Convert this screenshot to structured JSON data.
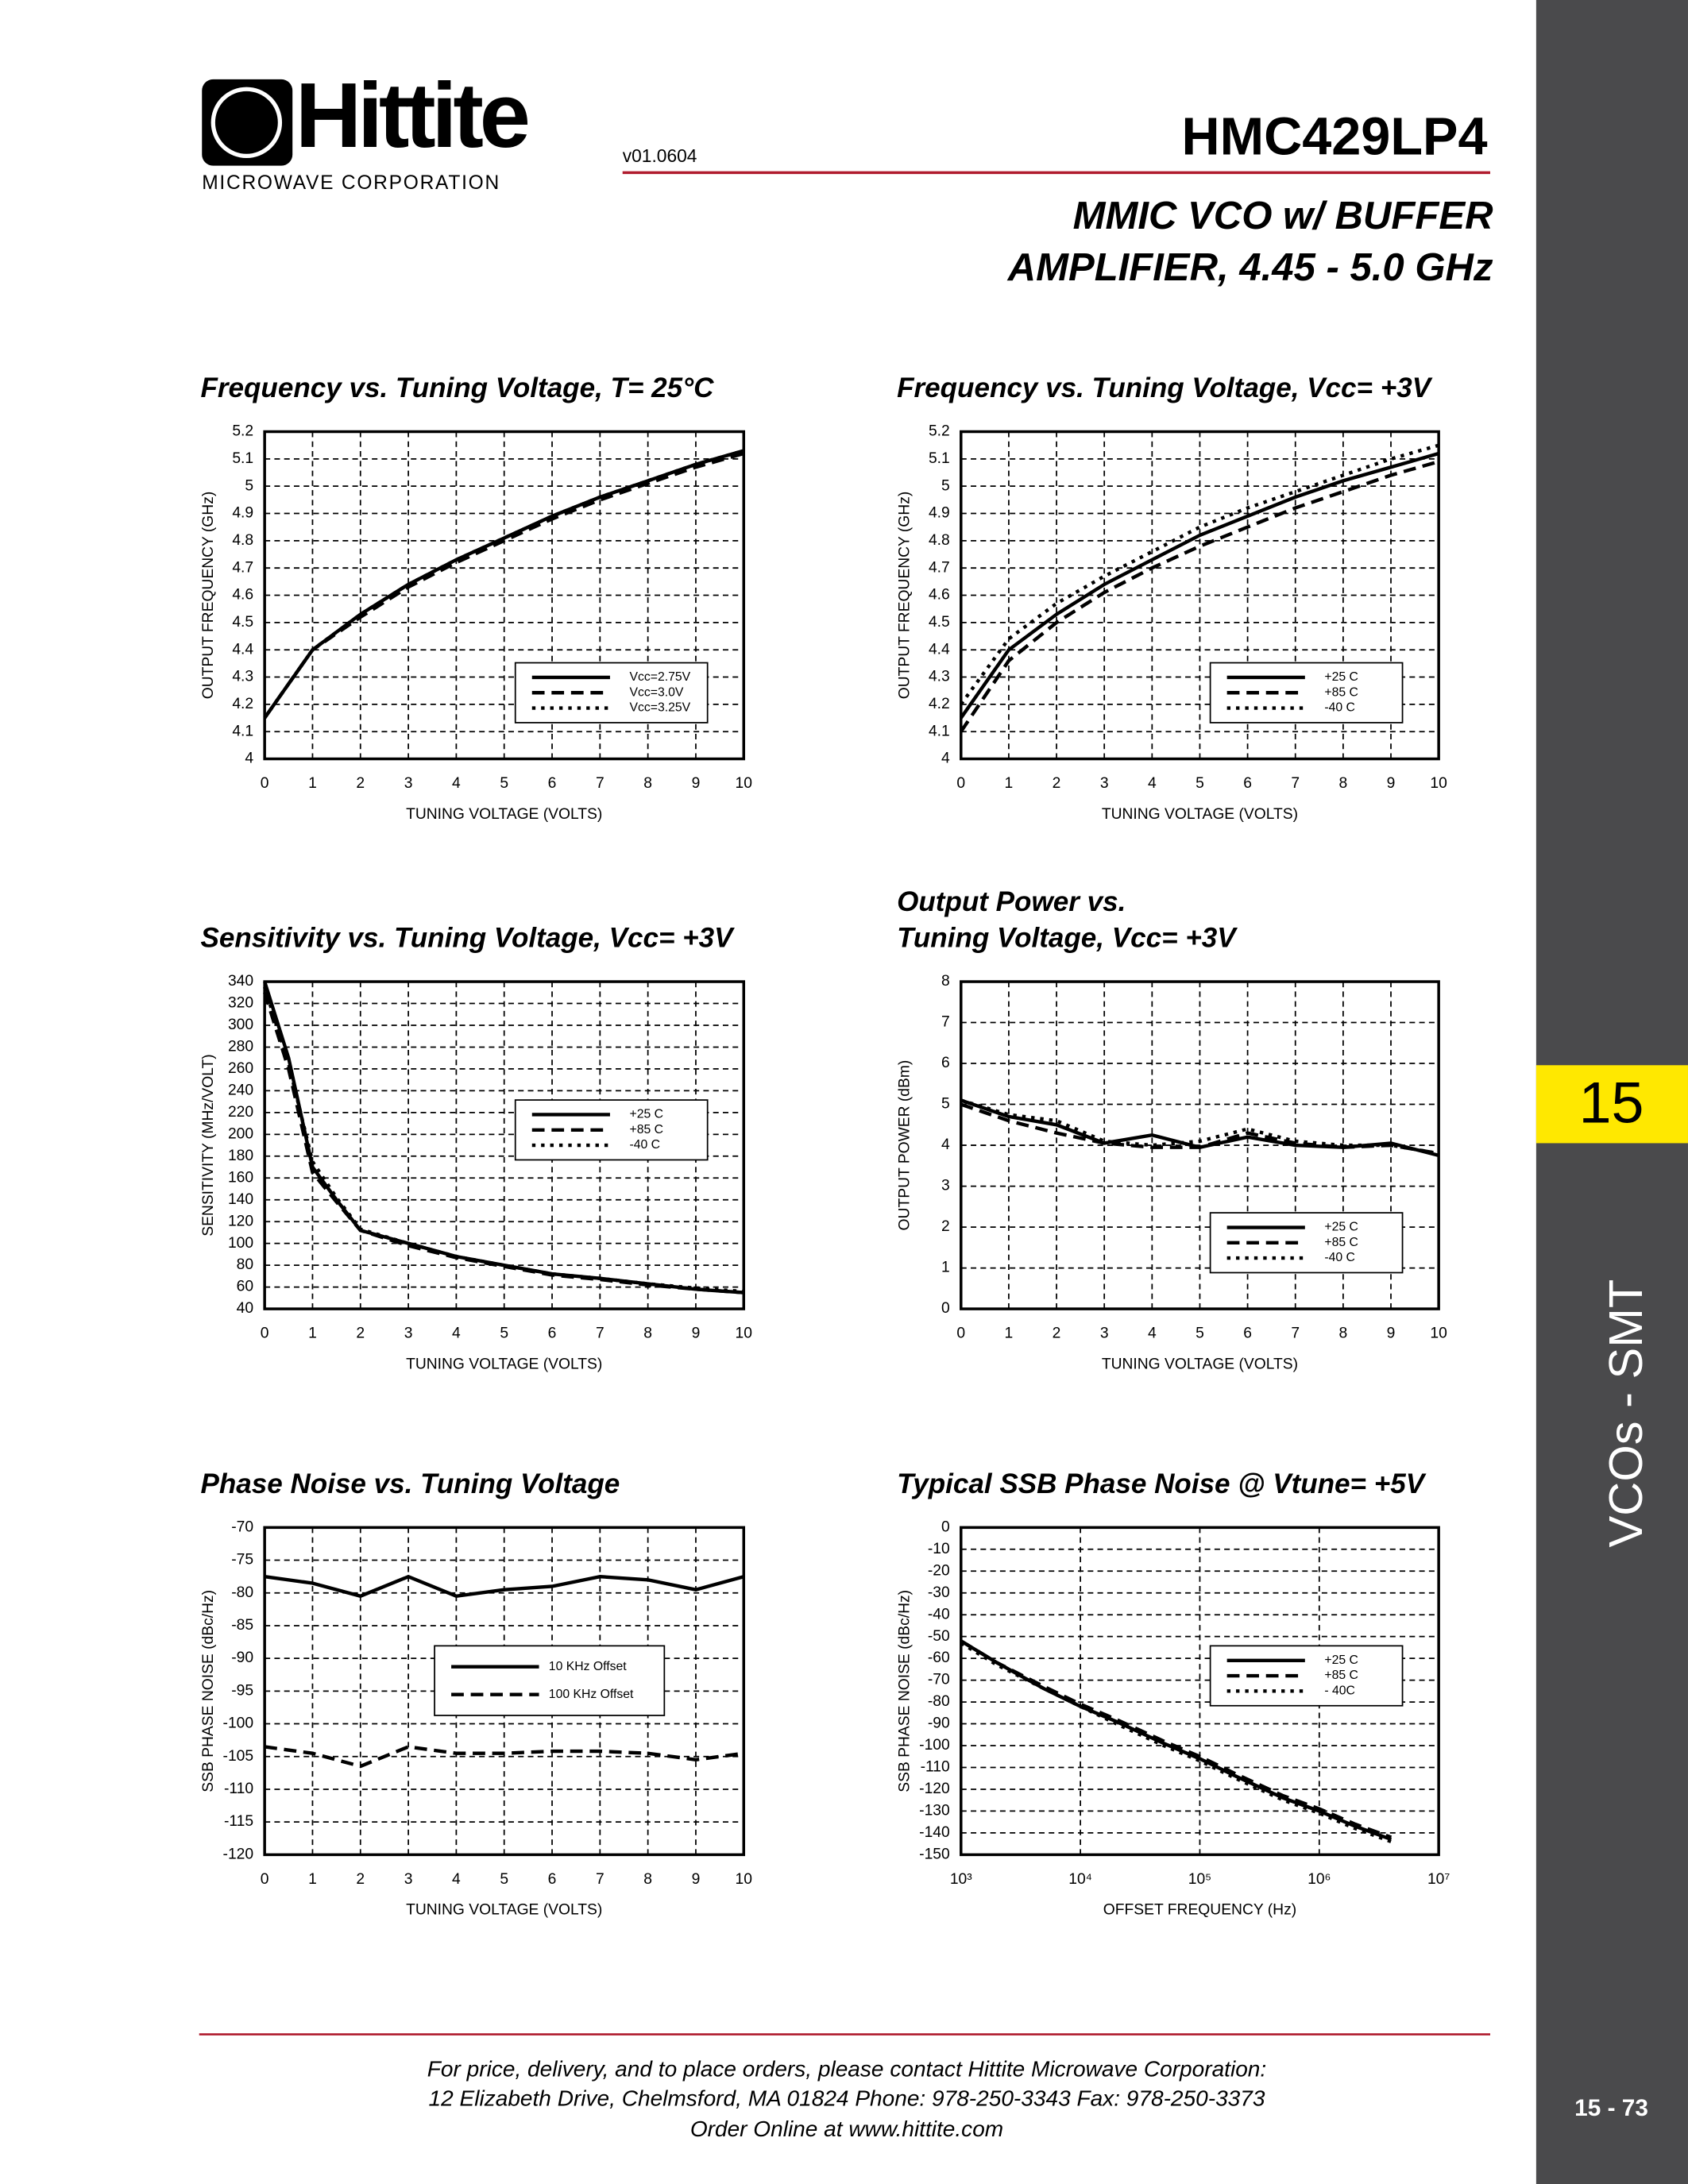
{
  "header": {
    "logo": "Hittite",
    "logo_sub": "MICROWAVE CORPORATION",
    "version": "v01.0604",
    "part": "HMC429LP4",
    "subtitle": [
      "MMIC VCO w/ BUFFER",
      "AMPLIFIER, 4.45 - 5.0 GHz"
    ]
  },
  "side": {
    "section": "15",
    "label": "VCOs - SMT",
    "page": "15 - 73"
  },
  "footer": [
    "For price, delivery, and to place orders, please contact Hittite Microwave Corporation:",
    "12 Elizabeth Drive, Chelmsford, MA 01824 Phone: 978-250-3343  Fax: 978-250-3373",
    "Order Online at www.hittite.com"
  ],
  "chart_data": [
    {
      "type": "line",
      "title": [
        "Frequency vs. Tuning Voltage, T= 25°C"
      ],
      "xlabel": "TUNING VOLTAGE (VOLTS)",
      "ylabel": "OUTPUT  FREQUENCY (GHz)",
      "x": [
        0,
        1,
        2,
        3,
        4,
        5,
        6,
        7,
        8,
        9,
        10
      ],
      "xlim": [
        0,
        10
      ],
      "xticks": [
        0,
        1,
        2,
        3,
        4,
        5,
        6,
        7,
        8,
        9,
        10
      ],
      "ylim": [
        4,
        5.2
      ],
      "yticks": [
        4,
        4.1,
        4.2,
        4.3,
        4.4,
        4.5,
        4.6,
        4.7,
        4.8,
        4.9,
        5,
        5.1,
        5.2
      ],
      "grid": true,
      "legend": "lower right",
      "series": [
        {
          "name": "Vcc=2.75V",
          "color": "#000000",
          "dash": "solid",
          "values": [
            4.15,
            4.4,
            4.53,
            4.64,
            4.73,
            4.81,
            4.89,
            4.96,
            5.02,
            5.08,
            5.13
          ]
        },
        {
          "name": "Vcc=3.0V",
          "color": "#000000",
          "dash": "dashed",
          "values": [
            4.15,
            4.4,
            4.52,
            4.63,
            4.72,
            4.8,
            4.88,
            4.95,
            5.01,
            5.07,
            5.12
          ]
        },
        {
          "name": "Vcc=3.25V",
          "color": "#000000",
          "dash": "dotted",
          "values": [
            4.15,
            4.4,
            4.53,
            4.64,
            4.73,
            4.81,
            4.89,
            4.96,
            5.02,
            5.08,
            5.13
          ]
        }
      ]
    },
    {
      "type": "line",
      "title": [
        "Frequency vs. Tuning Voltage, Vcc= +3V"
      ],
      "xlabel": "TUNING VOLTAGE (VOLTS)",
      "ylabel": "OUTPUT  FREQUENCY (GHz)",
      "x": [
        0,
        1,
        2,
        3,
        4,
        5,
        6,
        7,
        8,
        9,
        10
      ],
      "xlim": [
        0,
        10
      ],
      "xticks": [
        0,
        1,
        2,
        3,
        4,
        5,
        6,
        7,
        8,
        9,
        10
      ],
      "ylim": [
        4,
        5.2
      ],
      "yticks": [
        4,
        4.1,
        4.2,
        4.3,
        4.4,
        4.5,
        4.6,
        4.7,
        4.8,
        4.9,
        5,
        5.1,
        5.2
      ],
      "grid": true,
      "legend": "lower right",
      "series": [
        {
          "name": "+25 C",
          "color": "#000000",
          "dash": "solid",
          "values": [
            4.15,
            4.4,
            4.53,
            4.64,
            4.73,
            4.82,
            4.89,
            4.96,
            5.02,
            5.07,
            5.12
          ]
        },
        {
          "name": "+85 C",
          "color": "#000000",
          "dash": "dashed",
          "values": [
            4.1,
            4.36,
            4.5,
            4.61,
            4.7,
            4.78,
            4.85,
            4.92,
            4.98,
            5.04,
            5.09
          ]
        },
        {
          "name": "-40 C",
          "color": "#000000",
          "dash": "dotted",
          "values": [
            4.2,
            4.44,
            4.57,
            4.67,
            4.76,
            4.85,
            4.92,
            4.98,
            5.04,
            5.1,
            5.15
          ]
        }
      ]
    },
    {
      "type": "line",
      "title": [
        "Sensitivity vs. Tuning Voltage, Vcc= +3V"
      ],
      "xlabel": "TUNING VOLTAGE (VOLTS)",
      "ylabel": "SENSITIVITY (MHz/VOLT)",
      "x": [
        0,
        0.5,
        1,
        1.5,
        2,
        3,
        4,
        5,
        6,
        7,
        8,
        9,
        10
      ],
      "xlim": [
        0,
        10
      ],
      "xticks": [
        0,
        1,
        2,
        3,
        4,
        5,
        6,
        7,
        8,
        9,
        10
      ],
      "ylim": [
        40,
        340
      ],
      "yticks": [
        40,
        60,
        80,
        100,
        120,
        140,
        160,
        180,
        200,
        220,
        240,
        260,
        280,
        300,
        320,
        340
      ],
      "grid": true,
      "legend": "upper right",
      "series": [
        {
          "name": "+25 C",
          "color": "#000000",
          "dash": "solid",
          "values": [
            340,
            270,
            170,
            140,
            112,
            100,
            88,
            80,
            72,
            68,
            63,
            58,
            55
          ]
        },
        {
          "name": "+85 C",
          "color": "#000000",
          "dash": "dashed",
          "values": [
            330,
            260,
            165,
            138,
            112,
            98,
            87,
            79,
            71,
            67,
            62,
            58,
            55
          ]
        },
        {
          "name": "-40 C",
          "color": "#000000",
          "dash": "dotted",
          "values": [
            335,
            265,
            175,
            142,
            113,
            100,
            88,
            80,
            72,
            68,
            63,
            59,
            56
          ]
        }
      ]
    },
    {
      "type": "line",
      "title": [
        "Output Power vs.",
        "Tuning Voltage, Vcc= +3V"
      ],
      "xlabel": "TUNING VOLTAGE (VOLTS)",
      "ylabel": "OUTPUT POWER (dBm)",
      "x": [
        0,
        1,
        2,
        3,
        4,
        5,
        6,
        7,
        8,
        9,
        10
      ],
      "xlim": [
        0,
        10
      ],
      "xticks": [
        0,
        1,
        2,
        3,
        4,
        5,
        6,
        7,
        8,
        9,
        10
      ],
      "ylim": [
        0,
        8
      ],
      "yticks": [
        0,
        1,
        2,
        3,
        4,
        5,
        6,
        7,
        8
      ],
      "grid": true,
      "legend": "lower right",
      "series": [
        {
          "name": "+25 C",
          "color": "#000000",
          "dash": "solid",
          "values": [
            5.1,
            4.7,
            4.5,
            4.05,
            4.25,
            3.95,
            4.2,
            4.0,
            3.95,
            4.05,
            3.75
          ]
        },
        {
          "name": "+85 C",
          "color": "#000000",
          "dash": "dashed",
          "values": [
            5.0,
            4.6,
            4.3,
            4.05,
            3.95,
            3.95,
            4.3,
            4.05,
            3.95,
            4.0,
            3.8
          ]
        },
        {
          "name": "-40 C",
          "color": "#000000",
          "dash": "dotted",
          "values": [
            5.1,
            4.75,
            4.6,
            4.1,
            4.0,
            4.1,
            4.4,
            4.1,
            4.0,
            4.0,
            3.8
          ]
        }
      ]
    },
    {
      "type": "line",
      "title": [
        "Phase Noise vs. Tuning Voltage"
      ],
      "xlabel": "TUNING VOLTAGE (VOLTS)",
      "ylabel": "SSB PHASE NOISE (dBc/Hz)",
      "x": [
        0,
        1,
        2,
        3,
        4,
        5,
        6,
        7,
        8,
        9,
        10
      ],
      "xlim": [
        0,
        10
      ],
      "xticks": [
        0,
        1,
        2,
        3,
        4,
        5,
        6,
        7,
        8,
        9,
        10
      ],
      "ylim": [
        -120,
        -70
      ],
      "yticks": [
        -120,
        -115,
        -110,
        -105,
        -100,
        -95,
        -90,
        -85,
        -80,
        -75,
        -70
      ],
      "grid": true,
      "legend": "center",
      "series": [
        {
          "name": "10 KHz Offset",
          "color": "#000000",
          "dash": "solid",
          "values": [
            -77.5,
            -78.5,
            -80.5,
            -77.5,
            -80.5,
            -79.5,
            -79,
            -77.5,
            -78,
            -79.5,
            -77.5
          ]
        },
        {
          "name": "100 KHz Offset",
          "color": "#000000",
          "dash": "dashed",
          "values": [
            -103.5,
            -104.5,
            -106.5,
            -103.5,
            -104.5,
            -104.5,
            -104.2,
            -104.2,
            -104.5,
            -105.5,
            -104.5
          ]
        }
      ]
    },
    {
      "type": "line",
      "title": [
        "Typical SSB Phase Noise @ Vtune= +5V"
      ],
      "xlabel": "OFFSET FREQUENCY (Hz)",
      "ylabel": "SSB PHASE NOISE (dBc/Hz)",
      "xscale": "log",
      "x": [
        1000,
        2000,
        5000,
        10000,
        20000,
        50000,
        100000,
        200000,
        500000,
        1000000,
        2000000,
        4000000
      ],
      "xlim": [
        1000,
        10000000
      ],
      "xticks": [
        {
          "value": 1000,
          "label": "10³"
        },
        {
          "value": 10000,
          "label": "10⁴"
        },
        {
          "value": 100000,
          "label": "10⁵"
        },
        {
          "value": 1000000,
          "label": "10⁶"
        },
        {
          "value": 10000000,
          "label": "10⁷"
        }
      ],
      "ylim": [
        -150,
        0
      ],
      "yticks": [
        -150,
        -140,
        -130,
        -120,
        -110,
        -100,
        -90,
        -80,
        -70,
        -60,
        -50,
        -40,
        -30,
        -20,
        -10,
        0
      ],
      "grid": true,
      "legend": "upper right",
      "series": [
        {
          "name": "+25 C",
          "color": "#000000",
          "dash": "solid",
          "values": [
            -52,
            -62,
            -74,
            -82,
            -89,
            -99,
            -106,
            -114,
            -124,
            -130,
            -137,
            -143
          ]
        },
        {
          "name": "+85 C",
          "color": "#000000",
          "dash": "dashed",
          "values": [
            -52,
            -62,
            -73,
            -81,
            -88,
            -98,
            -105,
            -113,
            -123,
            -129,
            -136,
            -142
          ]
        },
        {
          "name": "- 40C",
          "color": "#000000",
          "dash": "dotted",
          "values": [
            -53,
            -63,
            -74,
            -82,
            -90,
            -100,
            -107,
            -115,
            -125,
            -131,
            -138,
            -144
          ]
        }
      ]
    }
  ]
}
